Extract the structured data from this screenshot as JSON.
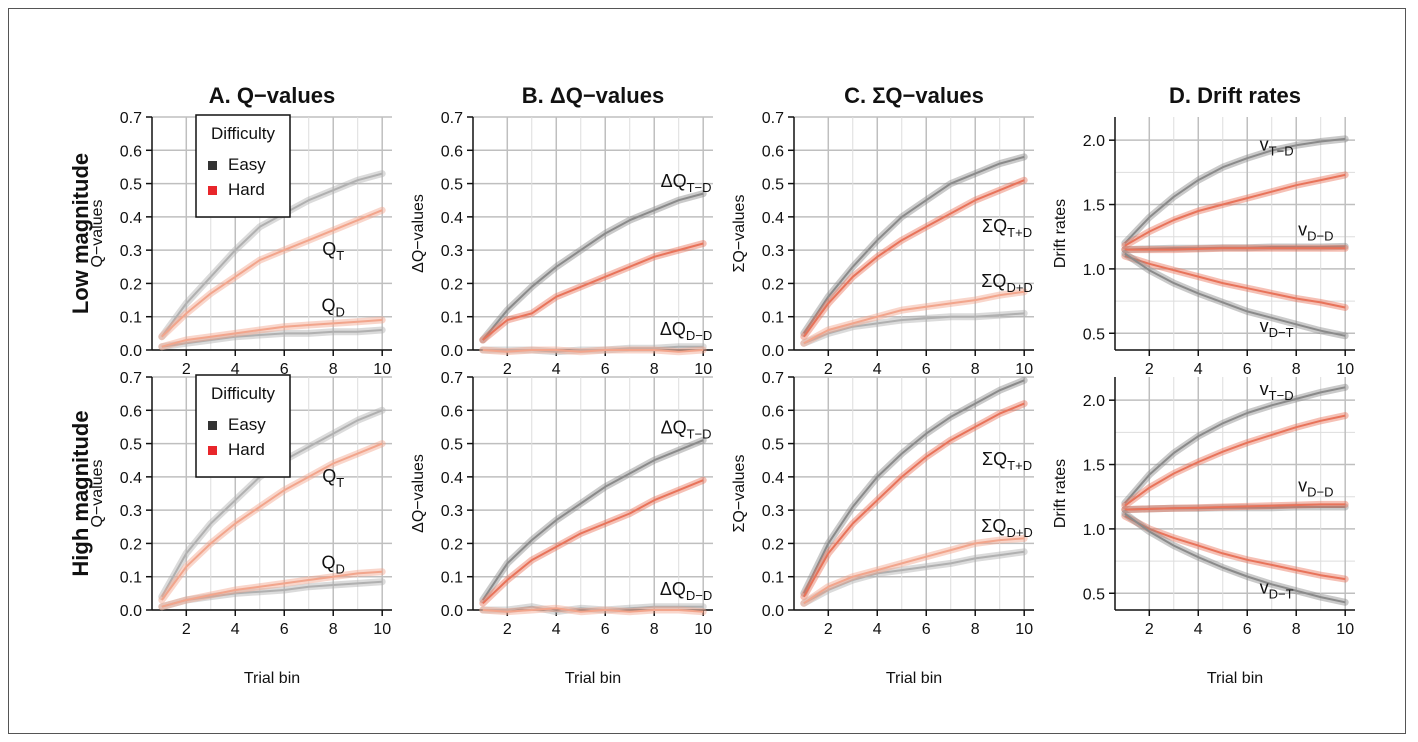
{
  "chart_data": {
    "type": "line",
    "column_titles": [
      "A. Q−values",
      "B. ΔQ−values",
      "C. ΣQ−values",
      "D. Drift rates"
    ],
    "row_titles": [
      "Low magnitude",
      "High magnitude"
    ],
    "xlabel": "Trial bin",
    "x": [
      1,
      2,
      3,
      4,
      5,
      6,
      7,
      8,
      9,
      10
    ],
    "xticks": [
      2,
      4,
      6,
      8,
      10
    ],
    "legend": {
      "title": "Difficulty",
      "entries": [
        {
          "label": "Easy",
          "color": "#333333"
        },
        {
          "label": "Hard",
          "color": "#e8262b"
        }
      ]
    },
    "colors": {
      "easy_line": "#8a8a8a",
      "hard_line": "#e8735a",
      "easy_light": "#b0b0b0",
      "hard_light": "#f2a58c",
      "grid": "#bfbfbf"
    },
    "panels": [
      {
        "id": "A-low",
        "ylabel": "Q−values",
        "ylim": [
          0,
          0.7
        ],
        "yticks": [
          "0.0",
          "0.1",
          "0.2",
          "0.3",
          "0.4",
          "0.5",
          "0.6",
          "0.7"
        ],
        "legend": true,
        "series": [
          {
            "group": "easy",
            "light": true,
            "values": [
              0.04,
              0.14,
              0.22,
              0.3,
              0.37,
              0.41,
              0.45,
              0.48,
              0.51,
              0.53
            ]
          },
          {
            "group": "hard",
            "light": true,
            "values": [
              0.04,
              0.11,
              0.17,
              0.22,
              0.27,
              0.3,
              0.33,
              0.36,
              0.39,
              0.42
            ]
          },
          {
            "group": "easy",
            "light": true,
            "values": [
              0.01,
              0.02,
              0.03,
              0.04,
              0.045,
              0.05,
              0.05,
              0.055,
              0.055,
              0.06
            ]
          },
          {
            "group": "hard",
            "light": true,
            "values": [
              0.01,
              0.03,
              0.04,
              0.05,
              0.06,
              0.07,
              0.075,
              0.08,
              0.085,
              0.09
            ]
          }
        ],
        "annotations": [
          {
            "main": "Q",
            "sub": "T",
            "x": 8,
            "y": 0.285
          },
          {
            "main": "Q",
            "sub": "D",
            "x": 8,
            "y": 0.115
          }
        ]
      },
      {
        "id": "B-low",
        "ylabel": "ΔQ−values",
        "ylim": [
          0,
          0.7
        ],
        "yticks": [
          "0.0",
          "0.1",
          "0.2",
          "0.3",
          "0.4",
          "0.5",
          "0.6",
          "0.7"
        ],
        "series": [
          {
            "group": "easy",
            "values": [
              0.03,
              0.12,
              0.19,
              0.25,
              0.3,
              0.35,
              0.39,
              0.42,
              0.45,
              0.47
            ]
          },
          {
            "group": "hard",
            "values": [
              0.03,
              0.09,
              0.11,
              0.16,
              0.19,
              0.22,
              0.25,
              0.28,
              0.3,
              0.32
            ]
          },
          {
            "group": "easy",
            "light": true,
            "values": [
              0.0,
              0.0,
              0.0,
              -0.005,
              0.0,
              0.0,
              0.005,
              0.005,
              0.01,
              0.01
            ]
          },
          {
            "group": "hard",
            "light": true,
            "values": [
              0.0,
              -0.005,
              0.0,
              0.0,
              -0.005,
              0.0,
              0.0,
              0.0,
              -0.005,
              0.0
            ]
          }
        ],
        "annotations": [
          {
            "main": "ΔQ",
            "sub": "T−D",
            "x": 9.3,
            "y": 0.49
          },
          {
            "main": "ΔQ",
            "sub": "D−D",
            "x": 9.3,
            "y": 0.045
          }
        ]
      },
      {
        "id": "C-low",
        "ylabel": "ΣQ−values",
        "ylim": [
          0,
          0.7
        ],
        "yticks": [
          "0.0",
          "0.1",
          "0.2",
          "0.3",
          "0.4",
          "0.5",
          "0.6",
          "0.7"
        ],
        "series": [
          {
            "group": "easy",
            "values": [
              0.05,
              0.16,
              0.25,
              0.33,
              0.4,
              0.45,
              0.5,
              0.53,
              0.56,
              0.58
            ]
          },
          {
            "group": "hard",
            "values": [
              0.04,
              0.14,
              0.22,
              0.28,
              0.33,
              0.37,
              0.41,
              0.45,
              0.48,
              0.51
            ]
          },
          {
            "group": "easy",
            "light": true,
            "values": [
              0.02,
              0.05,
              0.07,
              0.08,
              0.09,
              0.095,
              0.1,
              0.1,
              0.105,
              0.11
            ]
          },
          {
            "group": "hard",
            "light": true,
            "values": [
              0.02,
              0.06,
              0.08,
              0.1,
              0.12,
              0.13,
              0.14,
              0.15,
              0.165,
              0.175
            ]
          }
        ],
        "annotations": [
          {
            "main": "ΣQ",
            "sub": "T+D",
            "x": 9.3,
            "y": 0.355
          },
          {
            "main": "ΣQ",
            "sub": "D+D",
            "x": 9.3,
            "y": 0.19
          }
        ]
      },
      {
        "id": "D-low",
        "ylabel": "Drift rates",
        "ylim": [
          0.37,
          2.18
        ],
        "yticks": [
          "0.5",
          "1.0",
          "1.5",
          "2.0"
        ],
        "ytick_values": [
          0.5,
          1.0,
          1.5,
          2.0
        ],
        "series": [
          {
            "group": "easy",
            "values": [
              1.2,
              1.4,
              1.56,
              1.69,
              1.79,
              1.86,
              1.92,
              1.96,
              1.99,
              2.01
            ]
          },
          {
            "group": "hard",
            "values": [
              1.18,
              1.29,
              1.38,
              1.45,
              1.5,
              1.55,
              1.6,
              1.65,
              1.69,
              1.73
            ]
          },
          {
            "group": "easy",
            "values": [
              1.15,
              1.155,
              1.16,
              1.16,
              1.165,
              1.165,
              1.17,
              1.17,
              1.17,
              1.175
            ]
          },
          {
            "group": "hard",
            "values": [
              1.15,
              1.15,
              1.15,
              1.155,
              1.16,
              1.16,
              1.16,
              1.16,
              1.16,
              1.16
            ]
          },
          {
            "group": "hard",
            "values": [
              1.1,
              1.04,
              0.99,
              0.94,
              0.89,
              0.85,
              0.81,
              0.77,
              0.74,
              0.7
            ]
          },
          {
            "group": "easy",
            "values": [
              1.12,
              0.99,
              0.89,
              0.81,
              0.74,
              0.67,
              0.62,
              0.57,
              0.52,
              0.48
            ]
          }
        ],
        "annotations": [
          {
            "main": "v",
            "sub": "T−D",
            "x": 7.2,
            "y": 1.92
          },
          {
            "main": "v",
            "sub": "D−D",
            "x": 8.8,
            "y": 1.26
          },
          {
            "main": "v",
            "sub": "D−T",
            "x": 7.2,
            "y": 0.51
          }
        ]
      },
      {
        "id": "A-high",
        "ylabel": "Q−values",
        "ylim": [
          0,
          0.7
        ],
        "yticks": [
          "0.0",
          "0.1",
          "0.2",
          "0.3",
          "0.4",
          "0.5",
          "0.6",
          "0.7"
        ],
        "legend": true,
        "series": [
          {
            "group": "easy",
            "light": true,
            "values": [
              0.04,
              0.17,
              0.26,
              0.33,
              0.4,
              0.45,
              0.49,
              0.53,
              0.57,
              0.6
            ]
          },
          {
            "group": "hard",
            "light": true,
            "values": [
              0.03,
              0.13,
              0.2,
              0.26,
              0.31,
              0.36,
              0.4,
              0.44,
              0.47,
              0.5
            ]
          },
          {
            "group": "easy",
            "light": true,
            "values": [
              0.01,
              0.03,
              0.04,
              0.05,
              0.055,
              0.06,
              0.07,
              0.075,
              0.08,
              0.085
            ]
          },
          {
            "group": "hard",
            "light": true,
            "values": [
              0.01,
              0.03,
              0.045,
              0.06,
              0.07,
              0.08,
              0.09,
              0.1,
              0.11,
              0.115
            ]
          }
        ],
        "annotations": [
          {
            "main": "Q",
            "sub": "T",
            "x": 8,
            "y": 0.385
          },
          {
            "main": "Q",
            "sub": "D",
            "x": 8,
            "y": 0.125
          }
        ]
      },
      {
        "id": "B-high",
        "ylabel": "ΔQ−values",
        "ylim": [
          0,
          0.7
        ],
        "yticks": [
          "0.0",
          "0.1",
          "0.2",
          "0.3",
          "0.4",
          "0.5",
          "0.6",
          "0.7"
        ],
        "series": [
          {
            "group": "easy",
            "values": [
              0.03,
              0.14,
              0.21,
              0.27,
              0.32,
              0.37,
              0.41,
              0.45,
              0.48,
              0.51
            ]
          },
          {
            "group": "hard",
            "values": [
              0.02,
              0.09,
              0.15,
              0.19,
              0.23,
              0.26,
              0.29,
              0.33,
              0.36,
              0.39
            ]
          },
          {
            "group": "easy",
            "light": true,
            "values": [
              0.0,
              0.0,
              0.01,
              -0.005,
              0.005,
              0.0,
              0.005,
              0.01,
              0.01,
              0.01
            ]
          },
          {
            "group": "hard",
            "light": true,
            "values": [
              0.0,
              -0.005,
              0.0,
              0.005,
              -0.005,
              0.0,
              -0.005,
              0.0,
              0.0,
              -0.005
            ]
          }
        ],
        "annotations": [
          {
            "main": "ΔQ",
            "sub": "T−D",
            "x": 9.3,
            "y": 0.53
          },
          {
            "main": "ΔQ",
            "sub": "D−D",
            "x": 9.3,
            "y": 0.045
          }
        ]
      },
      {
        "id": "C-high",
        "ylabel": "ΣQ−values",
        "ylim": [
          0,
          0.7
        ],
        "yticks": [
          "0.0",
          "0.1",
          "0.2",
          "0.3",
          "0.4",
          "0.5",
          "0.6",
          "0.7"
        ],
        "series": [
          {
            "group": "easy",
            "values": [
              0.05,
              0.2,
              0.31,
              0.4,
              0.47,
              0.53,
              0.58,
              0.62,
              0.66,
              0.69
            ]
          },
          {
            "group": "hard",
            "values": [
              0.04,
              0.17,
              0.26,
              0.33,
              0.4,
              0.46,
              0.51,
              0.55,
              0.59,
              0.62
            ]
          },
          {
            "group": "easy",
            "light": true,
            "values": [
              0.02,
              0.06,
              0.09,
              0.11,
              0.12,
              0.13,
              0.14,
              0.155,
              0.165,
              0.175
            ]
          },
          {
            "group": "hard",
            "light": true,
            "values": [
              0.02,
              0.07,
              0.1,
              0.12,
              0.14,
              0.16,
              0.18,
              0.2,
              0.21,
              0.215
            ]
          }
        ],
        "annotations": [
          {
            "main": "ΣQ",
            "sub": "T+D",
            "x": 9.3,
            "y": 0.435
          },
          {
            "main": "ΣQ",
            "sub": "D+D",
            "x": 9.3,
            "y": 0.235
          }
        ]
      },
      {
        "id": "D-high",
        "ylabel": "Drift rates",
        "ylim": [
          0.37,
          2.18
        ],
        "yticks": [
          "0.5",
          "1.0",
          "1.5",
          "2.0"
        ],
        "ytick_values": [
          0.5,
          1.0,
          1.5,
          2.0
        ],
        "series": [
          {
            "group": "easy",
            "values": [
              1.2,
              1.42,
              1.59,
              1.72,
              1.82,
              1.9,
              1.96,
              2.01,
              2.06,
              2.1
            ]
          },
          {
            "group": "hard",
            "values": [
              1.18,
              1.32,
              1.43,
              1.52,
              1.6,
              1.67,
              1.73,
              1.79,
              1.84,
              1.88
            ]
          },
          {
            "group": "easy",
            "values": [
              1.15,
              1.155,
              1.16,
              1.16,
              1.165,
              1.165,
              1.165,
              1.17,
              1.17,
              1.17
            ]
          },
          {
            "group": "hard",
            "values": [
              1.15,
              1.155,
              1.16,
              1.165,
              1.17,
              1.175,
              1.18,
              1.185,
              1.19,
              1.19
            ]
          },
          {
            "group": "hard",
            "values": [
              1.1,
              1.0,
              0.93,
              0.87,
              0.81,
              0.76,
              0.72,
              0.68,
              0.64,
              0.61
            ]
          },
          {
            "group": "easy",
            "values": [
              1.12,
              0.98,
              0.87,
              0.78,
              0.7,
              0.63,
              0.57,
              0.52,
              0.47,
              0.43
            ]
          }
        ],
        "annotations": [
          {
            "main": "v",
            "sub": "T−D",
            "x": 7.2,
            "y": 2.04
          },
          {
            "main": "v",
            "sub": "D−D",
            "x": 8.8,
            "y": 1.29
          },
          {
            "main": "v",
            "sub": "D−T",
            "x": 7.2,
            "y": 0.5
          }
        ]
      }
    ]
  }
}
